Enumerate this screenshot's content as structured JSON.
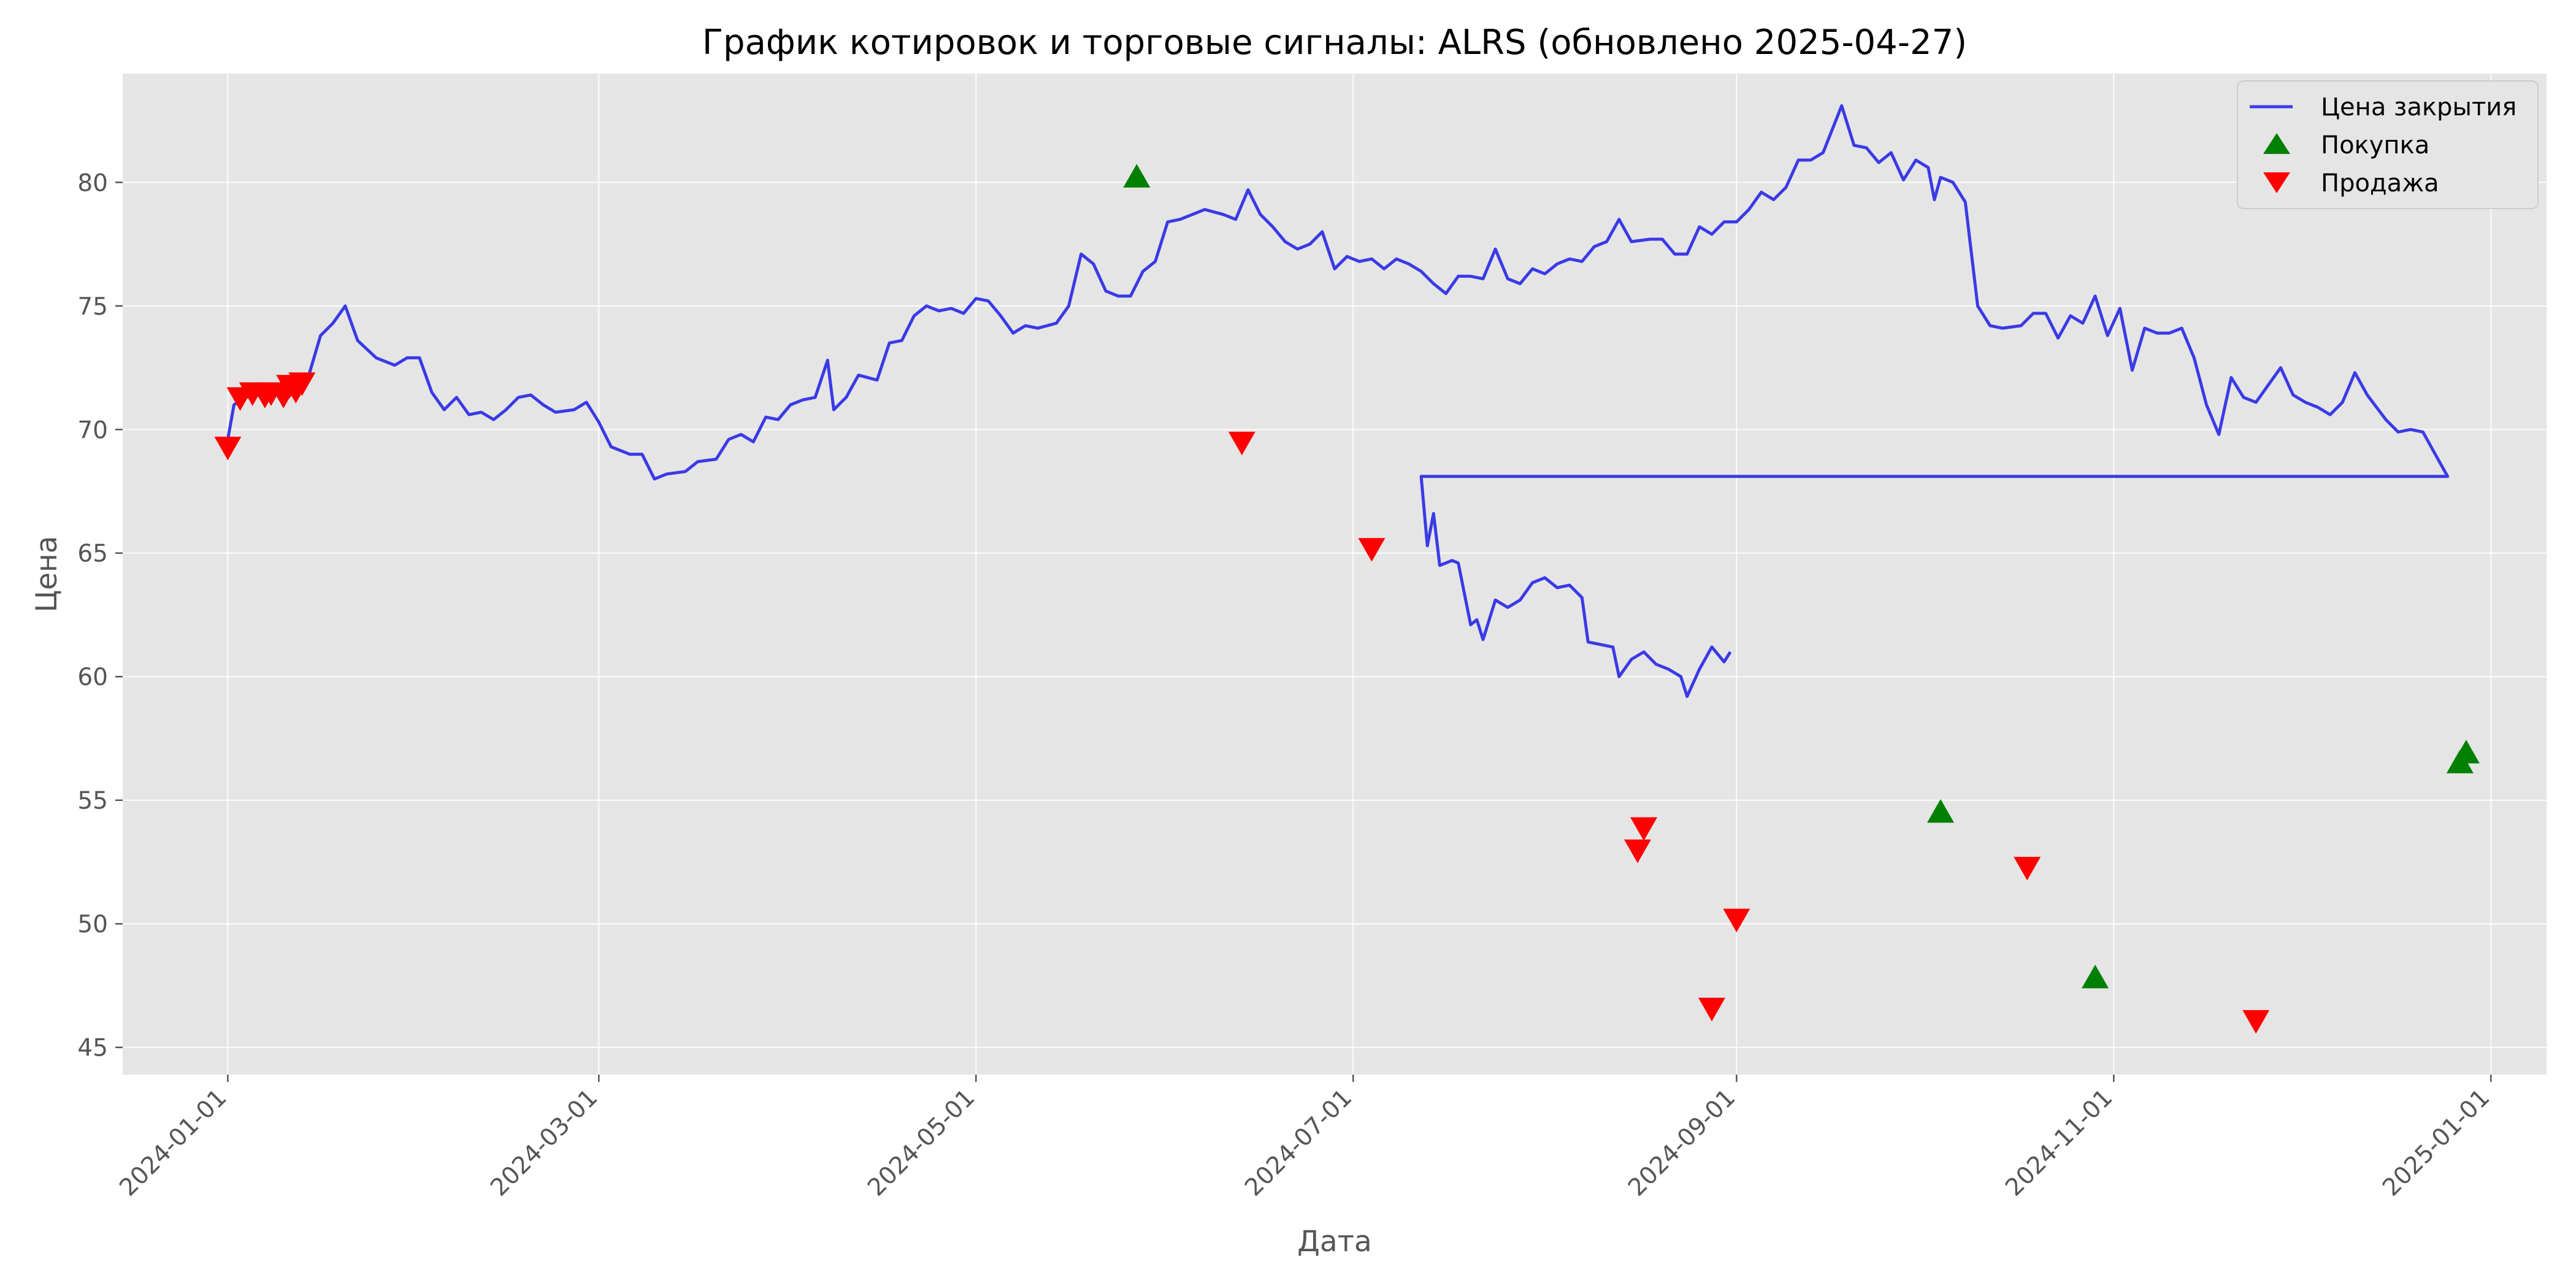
{
  "chart_data": {
    "type": "line",
    "title": "График котировок и торговые сигналы: ALRS (обновлено 2025-04-27)",
    "xlabel": "Дата",
    "ylabel": "Цена",
    "x_range": [
      "2023-12-15",
      "2025-01-10"
    ],
    "ylim": [
      43.9,
      84.4
    ],
    "x_ticks": [
      "2024-01-01",
      "2024-03-01",
      "2024-05-01",
      "2024-07-01",
      "2024-09-01",
      "2024-11-01",
      "2025-01-01"
    ],
    "y_ticks": [
      45,
      50,
      55,
      60,
      65,
      70,
      75,
      80
    ],
    "grid": true,
    "legend_position": "top-right",
    "colors": {
      "plot_bg": "#e5e5e5",
      "line": "#3a3ae6",
      "buy": "#008000",
      "sell": "#ff0000"
    },
    "series": [
      {
        "name": "Цена закрытия",
        "kind": "line",
        "points": [
          [
            "2024-01-01",
            69.6
          ],
          [
            "2024-01-02",
            71.0
          ],
          [
            "2024-01-04",
            71.3
          ],
          [
            "2024-01-06",
            71.6
          ],
          [
            "2024-01-08",
            71.4
          ],
          [
            "2024-01-10",
            71.8
          ],
          [
            "2024-01-12",
            71.3
          ],
          [
            "2024-01-14",
            72.1
          ],
          [
            "2024-01-16",
            73.8
          ],
          [
            "2024-01-18",
            74.3
          ],
          [
            "2024-01-20",
            75.0
          ],
          [
            "2024-01-22",
            73.6
          ],
          [
            "2024-01-25",
            72.9
          ],
          [
            "2024-01-28",
            72.6
          ],
          [
            "2024-01-30",
            72.9
          ],
          [
            "2024-02-01",
            72.9
          ],
          [
            "2024-02-03",
            71.5
          ],
          [
            "2024-02-05",
            70.8
          ],
          [
            "2024-02-07",
            71.3
          ],
          [
            "2024-02-09",
            70.6
          ],
          [
            "2024-02-11",
            70.7
          ],
          [
            "2024-02-13",
            70.4
          ],
          [
            "2024-02-15",
            70.8
          ],
          [
            "2024-02-17",
            71.3
          ],
          [
            "2024-02-19",
            71.4
          ],
          [
            "2024-02-21",
            71.0
          ],
          [
            "2024-02-23",
            70.7
          ],
          [
            "2024-02-26",
            70.8
          ],
          [
            "2024-02-28",
            71.1
          ],
          [
            "2024-03-01",
            70.3
          ],
          [
            "2024-03-03",
            69.3
          ],
          [
            "2024-03-06",
            69.0
          ],
          [
            "2024-03-08",
            69.0
          ],
          [
            "2024-03-10",
            68.0
          ],
          [
            "2024-03-12",
            68.2
          ],
          [
            "2024-03-15",
            68.3
          ],
          [
            "2024-03-17",
            68.7
          ],
          [
            "2024-03-20",
            68.8
          ],
          [
            "2024-03-22",
            69.6
          ],
          [
            "2024-03-24",
            69.8
          ],
          [
            "2024-03-26",
            69.5
          ],
          [
            "2024-03-28",
            70.5
          ],
          [
            "2024-03-30",
            70.4
          ],
          [
            "2024-04-01",
            71.0
          ],
          [
            "2024-04-03",
            71.2
          ],
          [
            "2024-04-05",
            71.3
          ],
          [
            "2024-04-07",
            72.8
          ],
          [
            "2024-04-08",
            70.8
          ],
          [
            "2024-04-10",
            71.3
          ],
          [
            "2024-04-12",
            72.2
          ],
          [
            "2024-04-15",
            72.0
          ],
          [
            "2024-04-17",
            73.5
          ],
          [
            "2024-04-19",
            73.6
          ],
          [
            "2024-04-21",
            74.6
          ],
          [
            "2024-04-23",
            75.0
          ],
          [
            "2024-04-25",
            74.8
          ],
          [
            "2024-04-27",
            74.9
          ],
          [
            "2024-04-29",
            74.7
          ],
          [
            "2024-05-01",
            75.3
          ],
          [
            "2024-05-03",
            75.2
          ],
          [
            "2024-05-05",
            74.6
          ],
          [
            "2024-05-07",
            73.9
          ],
          [
            "2024-05-09",
            74.2
          ],
          [
            "2024-05-11",
            74.1
          ],
          [
            "2024-05-14",
            74.3
          ],
          [
            "2024-05-16",
            75.0
          ],
          [
            "2024-05-18",
            77.1
          ],
          [
            "2024-05-20",
            76.7
          ],
          [
            "2024-05-22",
            75.6
          ],
          [
            "2024-05-24",
            75.4
          ],
          [
            "2024-05-26",
            75.4
          ],
          [
            "2024-05-28",
            76.4
          ],
          [
            "2024-05-30",
            76.8
          ],
          [
            "2024-06-01",
            78.4
          ],
          [
            "2024-06-03",
            78.5
          ],
          [
            "2024-06-05",
            78.7
          ],
          [
            "2024-06-07",
            78.9
          ],
          [
            "2024-06-10",
            78.7
          ],
          [
            "2024-06-12",
            78.5
          ],
          [
            "2024-06-14",
            79.7
          ],
          [
            "2024-06-16",
            78.7
          ],
          [
            "2024-06-18",
            78.2
          ],
          [
            "2024-06-20",
            77.6
          ],
          [
            "2024-06-22",
            77.3
          ],
          [
            "2024-06-24",
            77.5
          ],
          [
            "2024-06-26",
            78.0
          ],
          [
            "2024-06-28",
            76.5
          ],
          [
            "2024-06-30",
            77.0
          ],
          [
            "2024-07-02",
            76.8
          ],
          [
            "2024-07-04",
            76.9
          ],
          [
            "2024-07-06",
            76.5
          ],
          [
            "2024-07-08",
            76.9
          ],
          [
            "2024-07-10",
            76.7
          ],
          [
            "2024-07-12",
            76.4
          ],
          [
            "2024-07-14",
            75.9
          ],
          [
            "2024-07-16",
            75.5
          ],
          [
            "2024-07-18",
            76.2
          ],
          [
            "2024-07-20",
            76.2
          ],
          [
            "2024-07-22",
            76.1
          ],
          [
            "2024-07-24",
            77.3
          ],
          [
            "2024-07-26",
            76.1
          ],
          [
            "2024-07-28",
            75.9
          ],
          [
            "2024-07-30",
            76.5
          ],
          [
            "2024-08-01",
            76.3
          ],
          [
            "2024-08-03",
            76.7
          ],
          [
            "2024-08-05",
            76.9
          ],
          [
            "2024-08-07",
            76.8
          ],
          [
            "2024-08-09",
            77.4
          ],
          [
            "2024-08-11",
            77.6
          ],
          [
            "2024-08-13",
            78.5
          ],
          [
            "2024-08-15",
            77.6
          ],
          [
            "2024-08-18",
            77.7
          ],
          [
            "2024-08-20",
            77.7
          ],
          [
            "2024-08-22",
            77.1
          ],
          [
            "2024-08-24",
            77.1
          ],
          [
            "2024-08-26",
            78.2
          ],
          [
            "2024-08-28",
            77.9
          ],
          [
            "2024-08-30",
            78.4
          ],
          [
            "2024-09-01",
            78.4
          ],
          [
            "2024-09-03",
            78.9
          ],
          [
            "2024-09-05",
            79.6
          ],
          [
            "2024-09-07",
            79.3
          ],
          [
            "2024-09-09",
            79.8
          ],
          [
            "2024-09-11",
            80.9
          ],
          [
            "2024-09-13",
            80.9
          ],
          [
            "2024-09-15",
            81.2
          ],
          [
            "2024-09-18",
            83.1
          ],
          [
            "2024-09-20",
            81.5
          ],
          [
            "2024-09-22",
            81.4
          ],
          [
            "2024-09-24",
            80.8
          ],
          [
            "2024-09-26",
            81.2
          ],
          [
            "2024-09-28",
            80.1
          ],
          [
            "2024-09-30",
            80.9
          ],
          [
            "2024-10-02",
            80.6
          ],
          [
            "2024-10-03",
            79.3
          ],
          [
            "2024-10-04",
            80.2
          ],
          [
            "2024-10-06",
            80.0
          ],
          [
            "2024-10-08",
            79.2
          ],
          [
            "2024-10-10",
            75.0
          ],
          [
            "2024-10-12",
            74.2
          ],
          [
            "2024-10-14",
            74.1
          ],
          [
            "2024-10-17",
            74.2
          ],
          [
            "2024-10-19",
            74.7
          ],
          [
            "2024-10-21",
            74.7
          ],
          [
            "2024-10-23",
            73.7
          ],
          [
            "2024-10-25",
            74.6
          ],
          [
            "2024-10-27",
            74.3
          ],
          [
            "2024-10-29",
            75.4
          ],
          [
            "2024-10-31",
            73.8
          ],
          [
            "2024-11-02",
            74.9
          ],
          [
            "2024-11-04",
            72.4
          ],
          [
            "2024-11-06",
            74.1
          ],
          [
            "2024-11-08",
            73.9
          ],
          [
            "2024-11-10",
            73.9
          ],
          [
            "2024-11-12",
            74.1
          ],
          [
            "2024-11-14",
            72.9
          ],
          [
            "2024-11-16",
            71.0
          ],
          [
            "2024-11-18",
            69.8
          ],
          [
            "2024-11-20",
            72.1
          ],
          [
            "2024-11-22",
            71.3
          ],
          [
            "2024-11-24",
            71.1
          ],
          [
            "2024-11-26",
            71.8
          ],
          [
            "2024-11-28",
            72.5
          ],
          [
            "2024-11-30",
            71.4
          ],
          [
            "2024-12-02",
            71.1
          ],
          [
            "2024-12-04",
            70.9
          ],
          [
            "2024-12-06",
            70.6
          ],
          [
            "2024-12-08",
            71.1
          ],
          [
            "2024-12-10",
            72.3
          ],
          [
            "2024-12-12",
            71.4
          ],
          [
            "2024-12-15",
            70.4
          ],
          [
            "2024-12-17",
            69.9
          ],
          [
            "2024-12-19",
            70.0
          ],
          [
            "2024-12-21",
            69.9
          ],
          [
            "2024-12-23",
            69.0
          ],
          [
            "2024-12-25",
            68.1
          ]
        ],
        "continued": [
          [
            "2024-07-12",
            68.1
          ],
          [
            "2024-07-13",
            65.3
          ],
          [
            "2024-07-14",
            66.6
          ],
          [
            "2024-07-15",
            64.5
          ],
          [
            "2024-07-17",
            64.7
          ],
          [
            "2024-07-18",
            64.6
          ],
          [
            "2024-07-20",
            62.1
          ],
          [
            "2024-07-21",
            62.3
          ],
          [
            "2024-07-22",
            61.5
          ],
          [
            "2024-07-24",
            63.1
          ],
          [
            "2024-07-26",
            62.8
          ],
          [
            "2024-07-28",
            63.1
          ],
          [
            "2024-07-30",
            63.8
          ],
          [
            "2024-08-01",
            64.0
          ],
          [
            "2024-08-03",
            63.6
          ],
          [
            "2024-08-05",
            63.7
          ],
          [
            "2024-08-07",
            63.2
          ],
          [
            "2024-08-08",
            61.4
          ],
          [
            "2024-08-10",
            61.3
          ],
          [
            "2024-08-12",
            61.2
          ],
          [
            "2024-08-13",
            60.0
          ],
          [
            "2024-08-15",
            60.7
          ],
          [
            "2024-08-17",
            61.0
          ],
          [
            "2024-08-19",
            60.5
          ],
          [
            "2024-08-21",
            60.3
          ],
          [
            "2024-08-23",
            60.0
          ],
          [
            "2024-08-24",
            59.2
          ],
          [
            "2024-08-26",
            60.3
          ],
          [
            "2024-08-28",
            61.2
          ],
          [
            "2024-08-30",
            60.6
          ],
          [
            "2024-08-31",
            61.0
          ]
        ]
      },
      {
        "name": "Покупка",
        "kind": "marker-up",
        "points": [
          [
            "2024-05-27",
            80.2
          ],
          [
            "2024-10-04",
            54.5
          ],
          [
            "2024-10-29",
            47.8
          ],
          [
            "2024-12-27",
            56.5
          ],
          [
            "2024-12-28",
            56.9
          ]
        ]
      },
      {
        "name": "Продажа",
        "kind": "marker-down",
        "points": [
          [
            "2024-01-01",
            69.3
          ],
          [
            "2024-01-03",
            71.3
          ],
          [
            "2024-01-05",
            71.5
          ],
          [
            "2024-01-07",
            71.4
          ],
          [
            "2024-01-08",
            71.5
          ],
          [
            "2024-01-10",
            71.4
          ],
          [
            "2024-01-11",
            71.8
          ],
          [
            "2024-01-12",
            71.6
          ],
          [
            "2024-01-13",
            71.9
          ],
          [
            "2024-06-13",
            69.5
          ],
          [
            "2024-07-04",
            65.2
          ],
          [
            "2024-08-16",
            53.0
          ],
          [
            "2024-08-17",
            53.9
          ],
          [
            "2024-08-28",
            46.6
          ],
          [
            "2024-09-01",
            50.2
          ],
          [
            "2024-10-18",
            52.3
          ],
          [
            "2024-11-24",
            46.1
          ]
        ]
      }
    ]
  }
}
